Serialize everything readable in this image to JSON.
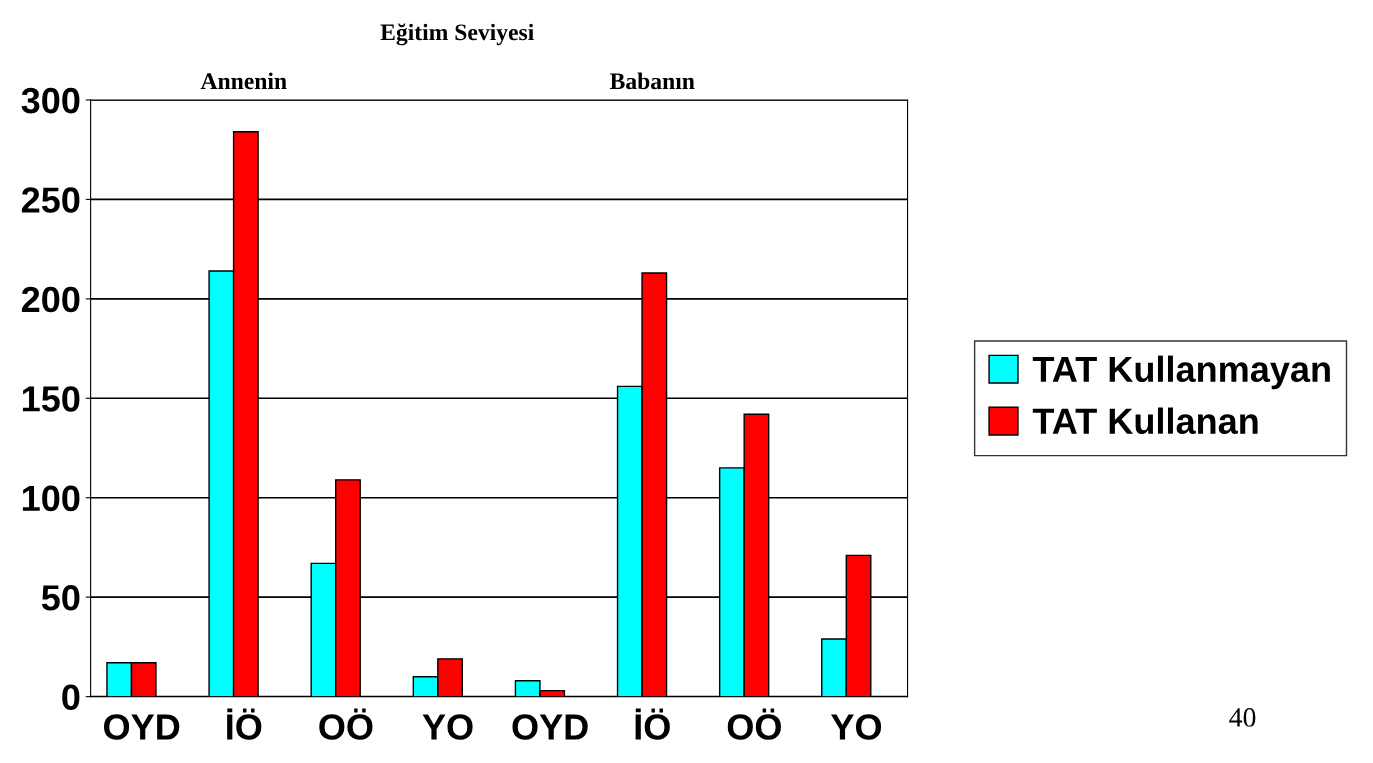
{
  "chart_data": {
    "type": "bar",
    "title": "Eğitim Seviyesi",
    "categories": [
      "OYD",
      "İÖ",
      "OÖ",
      "YO",
      "OYD",
      "İÖ",
      "OÖ",
      "YO"
    ],
    "series": [
      {
        "name": "TAT Kullanmayan",
        "color": "#00ffff",
        "values": [
          17,
          214,
          67,
          10,
          8,
          156,
          115,
          29
        ]
      },
      {
        "name": "TAT Kullanan",
        "color": "#ff0000",
        "values": [
          17,
          284,
          109,
          19,
          3,
          213,
          142,
          71
        ]
      }
    ],
    "annotations": [
      "Annenin",
      "Babanın",
      "40"
    ],
    "ylim": [
      0,
      300
    ],
    "yticks": [
      0,
      50,
      100,
      150,
      200,
      250,
      300
    ],
    "grid": "y",
    "legend": "right"
  }
}
